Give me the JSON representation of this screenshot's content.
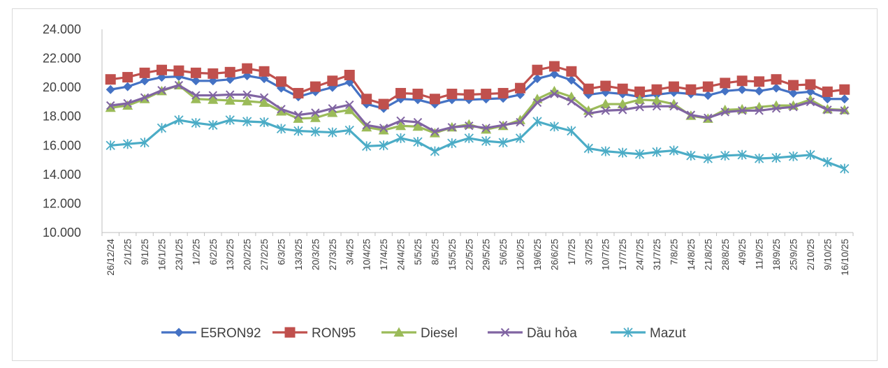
{
  "chart_data": {
    "type": "line",
    "title": "",
    "xlabel": "",
    "ylabel": "",
    "ylim": [
      10000,
      24000
    ],
    "yticks": [
      "10.000",
      "12.000",
      "14.000",
      "16.000",
      "18.000",
      "20.000",
      "22.000",
      "24.000"
    ],
    "ytick_values": [
      10000,
      12000,
      14000,
      16000,
      18000,
      20000,
      22000,
      24000
    ],
    "grid": false,
    "legend_position": "bottom",
    "categories": [
      "26/12/24",
      "2/1/25",
      "9/1/25",
      "16/1/25",
      "23/1/25",
      "1/2/25",
      "6/2/25",
      "13/2/25",
      "20/2/25",
      "27/2/25",
      "6/3/25",
      "13/3/25",
      "20/3/25",
      "27/3/25",
      "3/4/25",
      "10/4/25",
      "17/4/25",
      "24/4/25",
      "5/5/25",
      "8/5/25",
      "15/5/25",
      "22/5/25",
      "29/5/25",
      "5/6/25",
      "12/6/25",
      "19/6/25",
      "26/6/25",
      "1/7/25",
      "3/7/25",
      "10/7/25",
      "17/7/25",
      "24/7/25",
      "31/7/25",
      "7/8/25",
      "14/8/25",
      "21/8/25",
      "28/8/25",
      "4/9/25",
      "11/9/25",
      "18/9/25",
      "25/9/25",
      "2/10/25",
      "9/10/25",
      "16/10/25"
    ],
    "series": [
      {
        "name": "E5RON92",
        "color": "#4472c4",
        "marker": "diamond",
        "values": [
          19850,
          20050,
          20450,
          20700,
          20750,
          20450,
          20450,
          20550,
          20800,
          20600,
          19950,
          19350,
          19700,
          20000,
          20350,
          18850,
          18550,
          19200,
          19150,
          18850,
          19150,
          19150,
          19200,
          19250,
          19500,
          20600,
          20900,
          20500,
          19500,
          19650,
          19550,
          19350,
          19500,
          19650,
          19550,
          19450,
          19750,
          19850,
          19750,
          19950,
          19600,
          19700,
          19200,
          19200
        ]
      },
      {
        "name": "RON95",
        "color": "#c0504d",
        "marker": "square",
        "values": [
          20550,
          20700,
          21000,
          21200,
          21150,
          21000,
          20950,
          21050,
          21300,
          21100,
          20400,
          19600,
          20050,
          20450,
          20850,
          19200,
          18850,
          19600,
          19550,
          19200,
          19550,
          19500,
          19550,
          19600,
          19950,
          21200,
          21450,
          21100,
          19900,
          20100,
          19900,
          19700,
          19850,
          20050,
          19850,
          20050,
          20300,
          20450,
          20400,
          20550,
          20150,
          20200,
          19700,
          19850
        ]
      },
      {
        "name": "Diesel",
        "color": "#9bbb59",
        "marker": "triangle",
        "values": [
          18600,
          18750,
          19200,
          19750,
          20150,
          19200,
          19150,
          19100,
          19050,
          18950,
          18350,
          17850,
          17900,
          18250,
          18450,
          17250,
          17050,
          17350,
          17300,
          16850,
          17250,
          17450,
          17100,
          17350,
          17750,
          19200,
          19750,
          19350,
          18400,
          18850,
          18850,
          19150,
          19100,
          18850,
          18050,
          17850,
          18450,
          18500,
          18650,
          18750,
          18750,
          19150,
          18500,
          18450
        ]
      },
      {
        "name": "Dầu hỏa",
        "color": "#8064a2",
        "marker": "x",
        "values": [
          18750,
          18900,
          19300,
          19800,
          20150,
          19450,
          19450,
          19500,
          19500,
          19300,
          18500,
          18100,
          18250,
          18550,
          18800,
          17400,
          17200,
          17700,
          17600,
          16950,
          17250,
          17350,
          17200,
          17400,
          17600,
          18950,
          19550,
          19050,
          18200,
          18400,
          18450,
          18650,
          18700,
          18700,
          18100,
          17900,
          18300,
          18400,
          18400,
          18550,
          18650,
          19000,
          18450,
          18400
        ]
      },
      {
        "name": "Mazut",
        "color": "#4bacc6",
        "marker": "star",
        "values": [
          16000,
          16100,
          16200,
          17200,
          17750,
          17550,
          17400,
          17750,
          17650,
          17600,
          17150,
          17000,
          16950,
          16900,
          17050,
          15950,
          16000,
          16500,
          16250,
          15600,
          16150,
          16500,
          16300,
          16200,
          16500,
          17650,
          17300,
          17000,
          15800,
          15600,
          15500,
          15400,
          15550,
          15650,
          15300,
          15100,
          15300,
          15350,
          15100,
          15150,
          15250,
          15350,
          14850,
          14400
        ]
      }
    ]
  }
}
